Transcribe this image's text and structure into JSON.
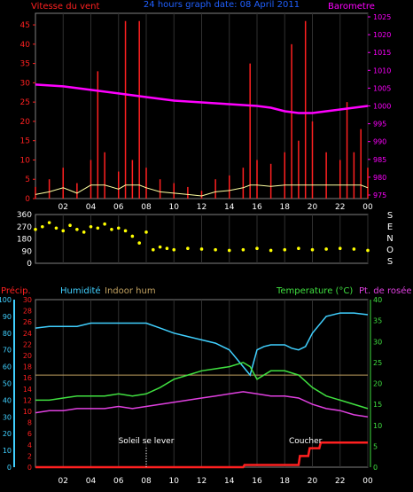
{
  "top": {
    "title_left": "Vitesse du vent",
    "title_center": "24 hours graph date: 08 April 2011",
    "title_right": "Barometre",
    "colors": {
      "wind": "#ff2020",
      "gust": "#ff0000",
      "avg": "#ffffa0",
      "baro": "#ff00ff",
      "title_center": "#2060ff",
      "bg": "#000000",
      "axis": "#ffffff",
      "grid": "#404040"
    }
  },
  "mid": {
    "compass": [
      "S",
      "E",
      "N",
      "O",
      "S"
    ],
    "colors": {
      "dir": "#ffff00"
    }
  },
  "bottom": {
    "label_precip": "Précip.",
    "label_hum": "Humidité",
    "label_indoor": "Indoor hum",
    "label_temp": "Temperature (°C)",
    "label_dew": "Pt. de rosée",
    "sunrise_label": "Soleil se lever",
    "sunset_label": "Coucher",
    "colors": {
      "precip": "#ff2020",
      "hum": "#40d0ff",
      "indoor": "#c0a060",
      "temp": "#40e040",
      "dew": "#e040e0",
      "sun": "#ffffff"
    }
  },
  "chart_data": [
    {
      "type": "line",
      "title": "24 hours graph date: 08 April 2011",
      "x_ticks": [
        "02",
        "04",
        "06",
        "08",
        "10",
        "12",
        "14",
        "16",
        "18",
        "20",
        "22",
        "00"
      ],
      "y_left_label": "Vitesse du vent",
      "y_left_ticks": [
        0,
        5,
        10,
        15,
        20,
        25,
        30,
        35,
        40,
        45
      ],
      "ylim_left": [
        0,
        48
      ],
      "y_right_label": "Barometre",
      "y_right_ticks": [
        975,
        980,
        985,
        990,
        995,
        1000,
        1005,
        1010,
        1015,
        1020,
        1025
      ],
      "ylim_right": [
        974,
        1026
      ],
      "series": [
        {
          "name": "Barometre",
          "axis": "right",
          "x": [
            0,
            2,
            4,
            6,
            8,
            10,
            12,
            14,
            16,
            17,
            18,
            19,
            20,
            21,
            22,
            23,
            24
          ],
          "values": [
            1006,
            1005.5,
            1004.5,
            1003.5,
            1002.5,
            1001.5,
            1001,
            1000.5,
            1000,
            999.5,
            998.5,
            998,
            998,
            998.5,
            999,
            999.5,
            1000
          ]
        },
        {
          "name": "Vitesse du vent",
          "axis": "left",
          "x": [
            0,
            1,
            2,
            3,
            4,
            4.5,
            5,
            6,
            6.5,
            7,
            7.5,
            8,
            9,
            10,
            11,
            12,
            13,
            14,
            15,
            15.5,
            16,
            17,
            18,
            18.5,
            19,
            19.5,
            20,
            21,
            22,
            22.5,
            23,
            23.5,
            24
          ],
          "values": [
            3,
            5,
            8,
            4,
            10,
            33,
            12,
            7,
            46,
            10,
            46,
            8,
            5,
            4,
            3,
            2,
            5,
            6,
            8,
            35,
            10,
            9,
            12,
            40,
            15,
            46,
            20,
            12,
            10,
            25,
            12,
            18,
            8
          ]
        }
      ]
    },
    {
      "type": "scatter",
      "x_ticks": [
        "02",
        "04",
        "06",
        "08",
        "10",
        "12",
        "14",
        "16",
        "18",
        "20",
        "22",
        "00"
      ],
      "y_ticks": [
        360,
        270,
        180,
        90,
        0
      ],
      "ylim": [
        0,
        360
      ],
      "series": [
        {
          "name": "direction",
          "x": [
            0,
            0.5,
            1,
            1.5,
            2,
            2.5,
            3,
            3.5,
            4,
            4.5,
            5,
            5.5,
            6,
            6.5,
            7,
            7.5,
            8,
            8.5,
            9,
            9.5,
            10,
            11,
            12,
            13,
            14,
            15,
            16,
            17,
            18,
            19,
            20,
            21,
            22,
            23,
            24
          ],
          "values": [
            250,
            270,
            300,
            260,
            240,
            280,
            250,
            230,
            270,
            260,
            290,
            250,
            260,
            240,
            200,
            150,
            230,
            100,
            120,
            110,
            100,
            110,
            105,
            100,
            95,
            100,
            110,
            95,
            100,
            110,
            100,
            105,
            110,
            105,
            95
          ]
        }
      ]
    },
    {
      "type": "line",
      "x_ticks": [
        "02",
        "04",
        "06",
        "08",
        "10",
        "12",
        "14",
        "16",
        "18",
        "20",
        "22",
        "00"
      ],
      "y_left_ticks_hum": [
        0,
        10,
        20,
        30,
        40,
        50,
        60,
        70,
        80,
        90,
        100
      ],
      "y_left_ticks_precip": [
        0,
        2,
        4,
        6,
        8,
        10,
        12,
        14,
        16,
        18,
        20,
        22,
        24,
        26,
        28,
        30
      ],
      "y_right_ticks": [
        0,
        5,
        10,
        15,
        20,
        25,
        30,
        35,
        40
      ],
      "annotations": [
        {
          "x": 8,
          "text": "Soleil se lever"
        },
        {
          "x": 19.5,
          "text": "Coucher"
        }
      ],
      "series": [
        {
          "name": "Humidité",
          "x": [
            0,
            1,
            2,
            3,
            4,
            5,
            6,
            7,
            8,
            9,
            10,
            11,
            12,
            13,
            14,
            15,
            15.5,
            16,
            16.5,
            17,
            18,
            18.5,
            19,
            19.5,
            20,
            21,
            22,
            23,
            24
          ],
          "values": [
            83,
            84,
            84,
            84,
            86,
            86,
            86,
            86,
            86,
            83,
            80,
            78,
            76,
            74,
            70,
            60,
            55,
            70,
            72,
            73,
            73,
            71,
            70,
            72,
            80,
            90,
            92,
            92,
            91
          ]
        },
        {
          "name": "Indoor hum",
          "x": [
            0,
            24
          ],
          "values": [
            55,
            55
          ]
        },
        {
          "name": "Temperature (°C)",
          "x": [
            0,
            1,
            2,
            3,
            4,
            5,
            6,
            7,
            8,
            9,
            10,
            11,
            12,
            13,
            14,
            15,
            15.5,
            16,
            17,
            18,
            19,
            20,
            21,
            22,
            23,
            24
          ],
          "values": [
            16,
            16,
            16.5,
            17,
            17,
            17,
            17.5,
            17,
            17.5,
            19,
            21,
            22,
            23,
            23.5,
            24,
            25,
            24,
            21,
            23,
            23,
            22,
            19,
            17,
            16,
            15,
            14
          ]
        },
        {
          "name": "Pt. de rosée",
          "x": [
            0,
            1,
            2,
            3,
            4,
            5,
            6,
            7,
            8,
            9,
            10,
            11,
            12,
            13,
            14,
            15,
            16,
            17,
            18,
            19,
            20,
            21,
            22,
            23,
            24
          ],
          "values": [
            13,
            13.5,
            13.5,
            14,
            14,
            14,
            14.5,
            14,
            14.5,
            15,
            15.5,
            16,
            16.5,
            17,
            17.5,
            18,
            17.5,
            17,
            17,
            16.5,
            15,
            14,
            13.5,
            12.5,
            12
          ]
        },
        {
          "name": "Précip.",
          "x": [
            0,
            15,
            15.1,
            19,
            19.1,
            19.7,
            19.8,
            20.5,
            20.6,
            24
          ],
          "values": [
            0,
            0,
            0.4,
            0.4,
            2,
            2,
            3.4,
            3.4,
            4.4,
            4.4
          ]
        }
      ]
    }
  ]
}
